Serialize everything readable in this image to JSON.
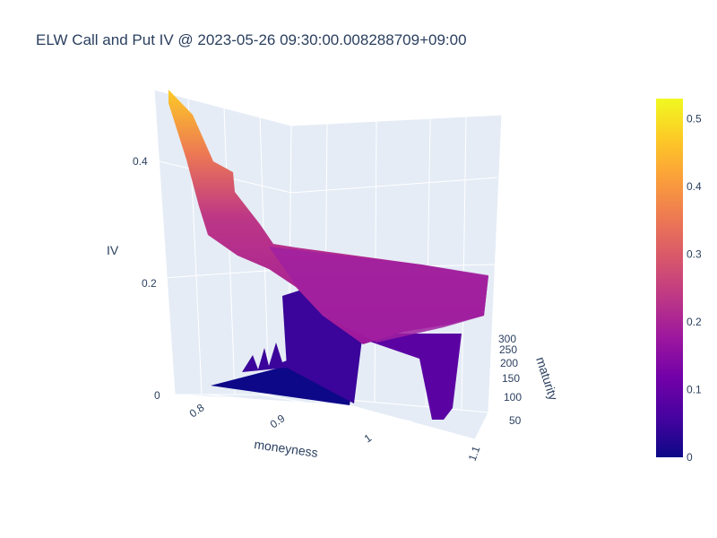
{
  "title": "ELW Call and Put IV @ 2023-05-26 09:30:00.008288709+09:00",
  "chart_data": {
    "type": "surface",
    "title": "ELW Call and Put IV @ 2023-05-26 09:30:00.008288709+09:00",
    "xlabel": "moneyness",
    "ylabel": "maturity",
    "zlabel": "IV",
    "x_ticks": [
      "0.8",
      "0.9",
      "1",
      "1.1"
    ],
    "y_ticks": [
      "50",
      "100",
      "150",
      "200",
      "250",
      "300"
    ],
    "z_ticks": [
      "0",
      "0.2",
      "0.4"
    ],
    "colorscale": "Plasma",
    "colorbar": {
      "ticks": [
        "0",
        "0.1",
        "0.2",
        "0.3",
        "0.4",
        "0.5"
      ],
      "range": [
        0,
        0.53
      ],
      "colors": [
        "#0d0887",
        "#46039f",
        "#7201a8",
        "#9c179e",
        "#bd3786",
        "#d8576b",
        "#ed7953",
        "#fb9f3a",
        "#fdca26",
        "#f0f921"
      ]
    },
    "surface": {
      "moneyness": [
        0.75,
        0.8,
        0.85,
        0.9,
        0.95,
        1.0,
        1.05,
        1.1,
        1.15
      ],
      "maturity": [
        30,
        100,
        200,
        300,
        340
      ],
      "iv": [
        [
          0.0,
          0.0,
          0.0,
          0.0,
          0.0
        ],
        [
          0.01,
          0.02,
          0.03,
          0.04,
          0.04
        ],
        [
          0.02,
          0.2,
          0.22,
          0.24,
          0.25
        ],
        [
          0.03,
          0.21,
          0.22,
          0.23,
          0.23
        ],
        [
          0.05,
          0.2,
          0.21,
          0.22,
          0.22
        ],
        [
          0.08,
          0.19,
          0.2,
          0.21,
          0.21
        ],
        [
          0.12,
          0.19,
          0.19,
          0.2,
          0.2
        ],
        [
          0.18,
          0.2,
          0.2,
          0.21,
          0.21
        ],
        [
          0.22,
          0.21,
          0.21,
          0.22,
          0.22
        ]
      ],
      "iv_ridge_low_moneyness": [
        0.53,
        0.49,
        0.42,
        0.36,
        0.28,
        0.22
      ]
    }
  }
}
